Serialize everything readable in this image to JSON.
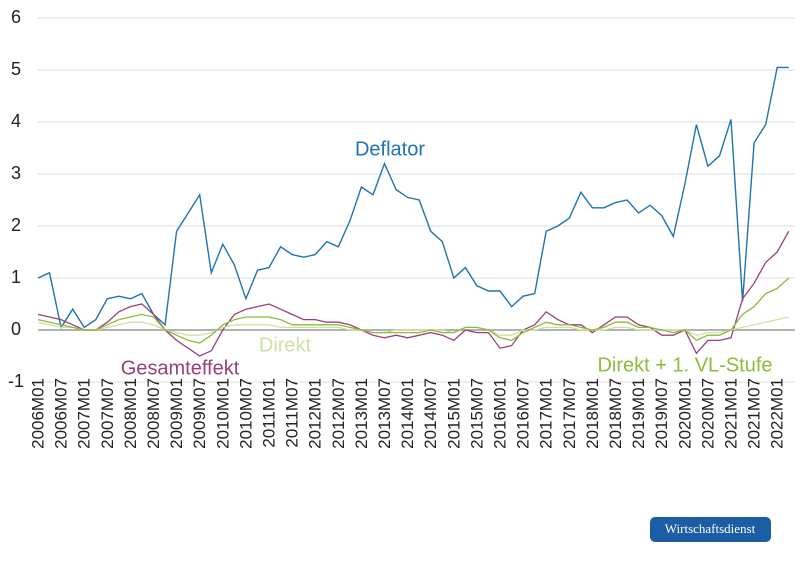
{
  "chart_data": {
    "type": "line",
    "categories": [
      "2006M01",
      null,
      "2006M07",
      null,
      "2007M01",
      null,
      "2007M07",
      null,
      "2008M01",
      null,
      "2008M07",
      null,
      "2009M01",
      null,
      "2009M07",
      null,
      "2010M01",
      null,
      "2010M07",
      null,
      "2011M01",
      null,
      "2011M07",
      null,
      "2012M01",
      null,
      "2012M07",
      null,
      "2013M01",
      null,
      "2013M07",
      null,
      "2014M01",
      null,
      "2014M07",
      null,
      "2015M01",
      null,
      "2015M07",
      null,
      "2016M01",
      null,
      "2016M07",
      null,
      "2017M01",
      null,
      "2017M07",
      null,
      "2018M01",
      null,
      "2018M07",
      null,
      "2019M01",
      null,
      "2019M07",
      null,
      "2020M01",
      null,
      "2020M07",
      null,
      "2021M01",
      null,
      "2021M07",
      null,
      "2022M01",
      null
    ],
    "series": [
      {
        "name": "Deflator",
        "color": "#1f74b0",
        "values": [
          1.0,
          1.1,
          0.05,
          0.4,
          0.05,
          0.2,
          0.6,
          0.65,
          0.6,
          0.7,
          0.3,
          0.1,
          1.9,
          2.25,
          2.6,
          1.1,
          1.65,
          1.25,
          0.6,
          1.15,
          1.2,
          1.6,
          1.45,
          1.4,
          1.45,
          1.7,
          1.6,
          2.1,
          2.75,
          2.6,
          3.2,
          2.7,
          2.55,
          2.5,
          1.9,
          1.7,
          1.0,
          1.2,
          0.85,
          0.75,
          0.75,
          0.45,
          0.65,
          0.7,
          1.9,
          2.0,
          2.15,
          2.65,
          2.35,
          2.35,
          2.45,
          2.5,
          2.25,
          2.4,
          2.2,
          1.8,
          2.8,
          3.95,
          3.15,
          3.35,
          4.05,
          0.55,
          3.6,
          3.95,
          5.05,
          5.05
        ]
      },
      {
        "name": "Gesamteffekt",
        "color": "#9b3f7a",
        "values": [
          0.3,
          0.25,
          0.2,
          0.1,
          0.0,
          0.0,
          0.15,
          0.35,
          0.45,
          0.5,
          0.3,
          0.0,
          -0.2,
          -0.35,
          -0.5,
          -0.4,
          0.0,
          0.3,
          0.4,
          0.45,
          0.5,
          0.4,
          0.3,
          0.2,
          0.2,
          0.15,
          0.15,
          0.1,
          0.0,
          -0.1,
          -0.15,
          -0.1,
          -0.15,
          -0.1,
          -0.05,
          -0.1,
          -0.2,
          0.0,
          -0.05,
          -0.05,
          -0.35,
          -0.3,
          0.0,
          0.1,
          0.35,
          0.2,
          0.1,
          0.1,
          -0.05,
          0.1,
          0.25,
          0.25,
          0.1,
          0.05,
          -0.1,
          -0.1,
          0.0,
          -0.45,
          -0.2,
          -0.2,
          -0.15,
          0.6,
          0.9,
          1.3,
          1.5,
          1.9
        ]
      },
      {
        "name": "Direkt",
        "color": "#cfe0a6",
        "values": [
          0.15,
          0.1,
          0.05,
          0.05,
          0.0,
          0.0,
          0.05,
          0.1,
          0.15,
          0.15,
          0.1,
          0.0,
          -0.05,
          -0.1,
          -0.1,
          -0.05,
          0.05,
          0.1,
          0.1,
          0.1,
          0.1,
          0.05,
          0.05,
          0.05,
          0.05,
          0.05,
          0.05,
          0.0,
          0.0,
          -0.05,
          -0.05,
          0.0,
          0.0,
          0.0,
          0.0,
          0.0,
          -0.05,
          0.05,
          0.05,
          0.0,
          -0.1,
          -0.1,
          0.0,
          0.0,
          0.05,
          0.05,
          0.05,
          0.0,
          0.0,
          0.0,
          0.05,
          0.05,
          0.0,
          0.0,
          0.0,
          0.0,
          0.0,
          -0.1,
          -0.05,
          -0.05,
          0.0,
          0.05,
          0.1,
          0.15,
          0.2,
          0.25
        ]
      },
      {
        "name": "Direkt + 1. VL-Stufe",
        "color": "#8dbb3a",
        "values": [
          0.2,
          0.15,
          0.1,
          0.05,
          0.0,
          0.0,
          0.1,
          0.2,
          0.25,
          0.3,
          0.25,
          0.0,
          -0.1,
          -0.2,
          -0.25,
          -0.1,
          0.1,
          0.2,
          0.25,
          0.25,
          0.25,
          0.2,
          0.1,
          0.1,
          0.1,
          0.1,
          0.1,
          0.05,
          0.0,
          -0.05,
          -0.05,
          -0.05,
          -0.05,
          -0.05,
          0.0,
          -0.05,
          -0.05,
          0.05,
          0.05,
          0.0,
          -0.15,
          -0.2,
          -0.05,
          0.05,
          0.15,
          0.1,
          0.1,
          0.05,
          0.0,
          0.05,
          0.15,
          0.15,
          0.05,
          0.05,
          0.0,
          -0.05,
          0.0,
          -0.2,
          -0.1,
          -0.1,
          0.0,
          0.3,
          0.45,
          0.7,
          0.8,
          1.0
        ]
      }
    ],
    "ylim": [
      -1,
      6
    ],
    "yticks": [
      -1,
      0,
      1,
      2,
      3,
      4,
      5,
      6
    ],
    "grid": true,
    "source": "Wirtschaftsdienst"
  }
}
